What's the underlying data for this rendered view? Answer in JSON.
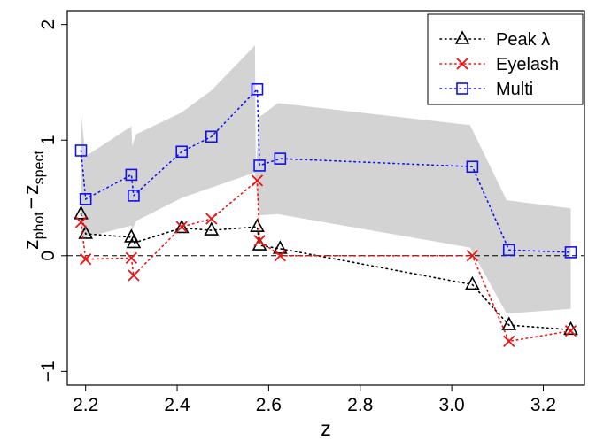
{
  "chart_data": {
    "type": "line",
    "xlabel": "z",
    "ylabel_main": "z",
    "ylabel_sub1": "phot",
    "ylabel_minus": "−",
    "ylabel_main2": "z",
    "ylabel_sub2": "spect",
    "xlim": [
      2.16,
      3.29
    ],
    "ylim": [
      -1.12,
      2.12
    ],
    "x_ticks": [
      2.2,
      2.4,
      2.6,
      2.8,
      3.0,
      3.2
    ],
    "x_tick_labels": [
      "2.2",
      "2.4",
      "2.6",
      "2.8",
      "3.0",
      "3.2"
    ],
    "y_ticks": [
      -1,
      0,
      1,
      2
    ],
    "y_tick_labels": [
      "−1",
      "0",
      "1",
      "2"
    ],
    "reference_line_y": 0,
    "grid": false,
    "legend_position": "top-right",
    "band": {
      "color": "#d3d3d3",
      "upper": [
        [
          2.19,
          1.23
        ],
        [
          2.2,
          0.86
        ],
        [
          2.3,
          1.12
        ],
        [
          2.302,
          0.95
        ],
        [
          2.31,
          1.05
        ],
        [
          2.41,
          1.24
        ],
        [
          2.475,
          1.43
        ],
        [
          2.57,
          1.82
        ],
        [
          2.572,
          0.75
        ],
        [
          2.58,
          1.2
        ],
        [
          2.62,
          1.32
        ],
        [
          3.04,
          1.13
        ],
        [
          3.12,
          0.48
        ],
        [
          3.26,
          0.41
        ]
      ],
      "lower": [
        [
          3.26,
          -0.46
        ],
        [
          3.12,
          -0.5
        ],
        [
          3.04,
          0.07
        ],
        [
          2.62,
          0.36
        ],
        [
          2.58,
          0.35
        ],
        [
          2.572,
          0.6
        ],
        [
          2.57,
          0.72
        ],
        [
          2.475,
          0.59
        ],
        [
          2.41,
          0.5
        ],
        [
          2.31,
          0.3
        ],
        [
          2.302,
          0.22
        ],
        [
          2.3,
          0.26
        ],
        [
          2.2,
          0.16
        ],
        [
          2.19,
          0.16
        ]
      ]
    },
    "series": [
      {
        "name": "Peak λ",
        "marker": "triangle",
        "color": "#000000",
        "x": [
          2.19,
          2.2,
          2.3,
          2.305,
          2.41,
          2.475,
          2.575,
          2.58,
          2.625,
          3.045,
          3.125,
          3.26
        ],
        "y": [
          0.36,
          0.19,
          0.16,
          0.11,
          0.24,
          0.22,
          0.25,
          0.09,
          0.06,
          -0.25,
          -0.6,
          -0.64
        ]
      },
      {
        "name": "Eyelash",
        "marker": "cross",
        "color": "#ee1111",
        "x": [
          2.19,
          2.2,
          2.3,
          2.305,
          2.41,
          2.475,
          2.575,
          2.58,
          2.625,
          3.045,
          3.125,
          3.26
        ],
        "y": [
          0.29,
          -0.03,
          -0.02,
          -0.17,
          0.25,
          0.32,
          0.65,
          0.13,
          0.0,
          0.0,
          -0.74,
          -0.65
        ]
      },
      {
        "name": "Multi",
        "marker": "square",
        "color": "#1111ee",
        "x": [
          2.19,
          2.2,
          2.3,
          2.305,
          2.41,
          2.475,
          2.575,
          2.58,
          2.625,
          3.045,
          3.125,
          3.26
        ],
        "y": [
          0.91,
          0.49,
          0.7,
          0.52,
          0.9,
          1.03,
          1.44,
          0.78,
          0.84,
          0.77,
          0.05,
          0.03
        ]
      }
    ]
  }
}
